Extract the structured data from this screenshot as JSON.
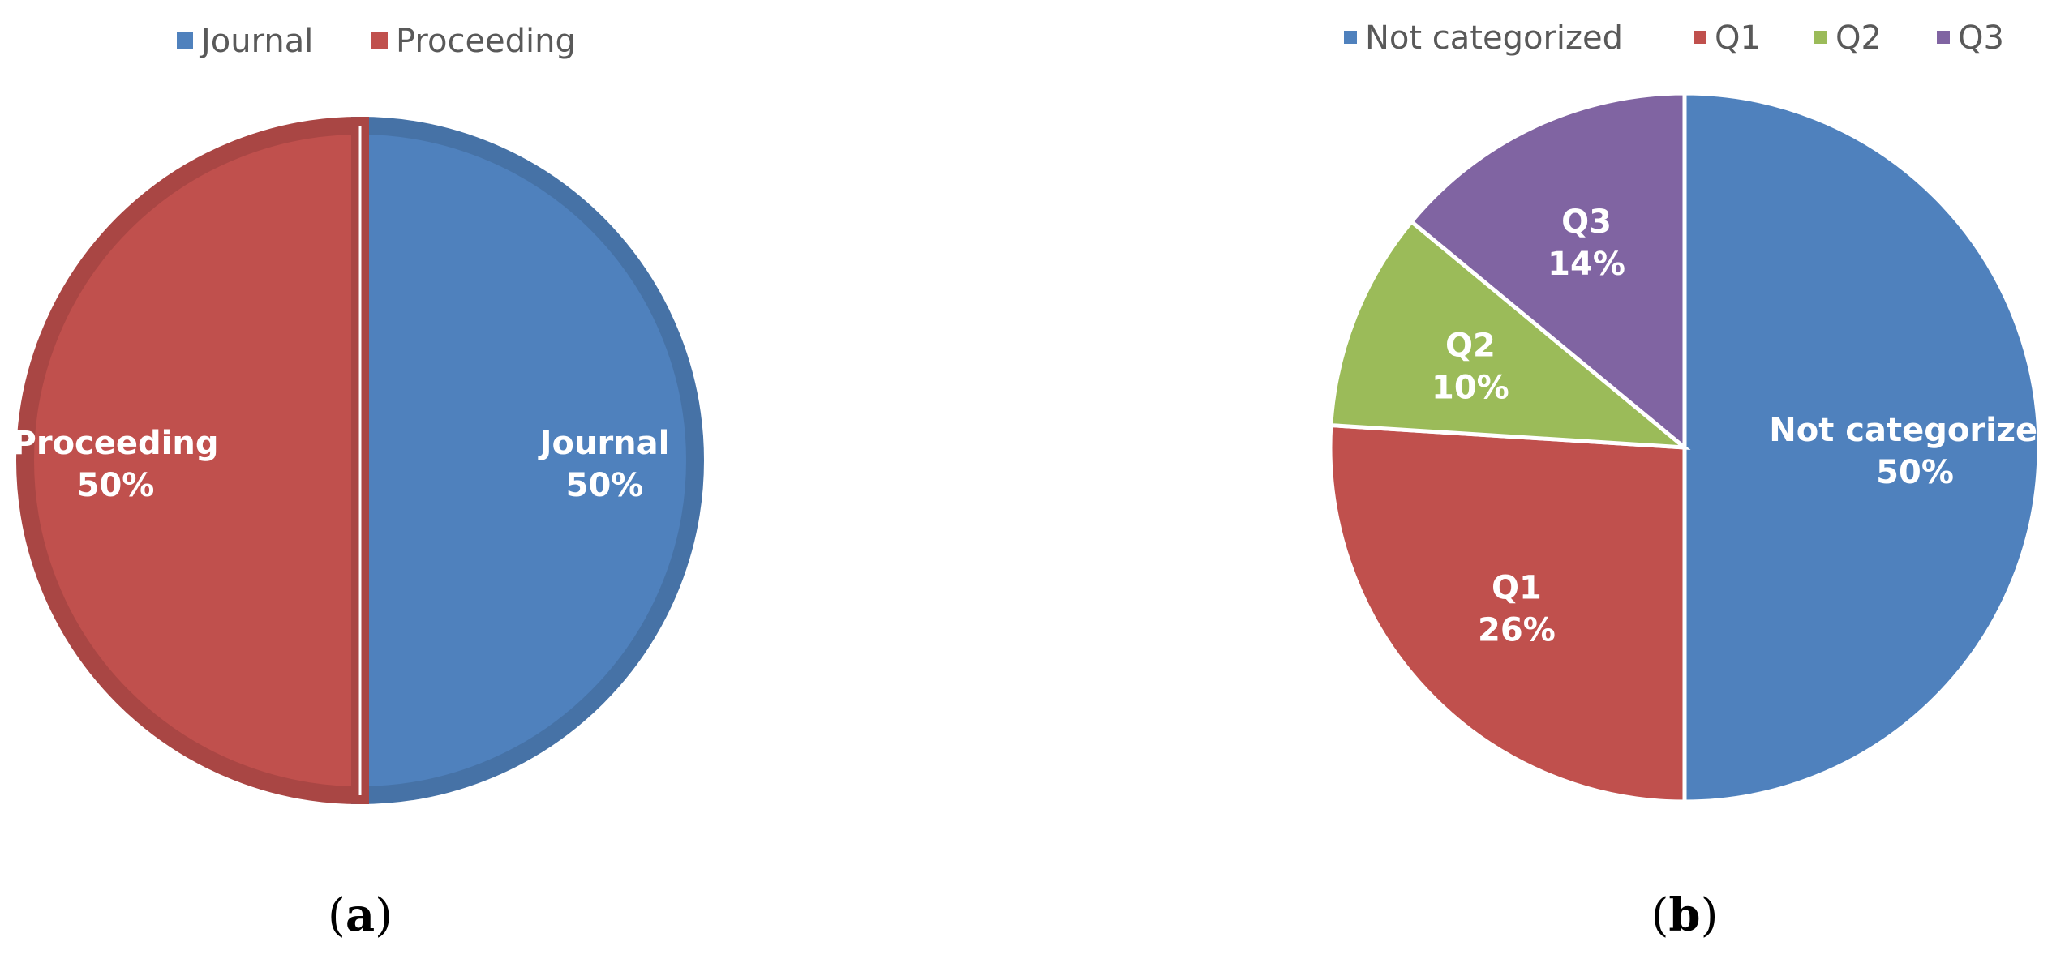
{
  "colors": {
    "blue": "#4F81BD",
    "red": "#C0504D",
    "green": "#9BBB59",
    "purple": "#8064A2"
  },
  "chart_data": [
    {
      "type": "pie",
      "panel_label": "a",
      "legend_position": "top",
      "slices": [
        {
          "name": "Journal",
          "value": 50,
          "label_value": "50%",
          "color": "#4F81BD"
        },
        {
          "name": "Proceeding",
          "value": 50,
          "label_value": "50%",
          "color": "#C0504D"
        }
      ]
    },
    {
      "type": "pie",
      "panel_label": "b",
      "legend_position": "top",
      "slices": [
        {
          "name": "Not categorized",
          "value": 50,
          "label_value": "50%",
          "color": "#4F81BD"
        },
        {
          "name": "Q1",
          "value": 26,
          "label_value": "26%",
          "color": "#C0504D"
        },
        {
          "name": "Q2",
          "value": 10,
          "label_value": "10%",
          "color": "#9BBB59"
        },
        {
          "name": "Q3",
          "value": 14,
          "label_value": "14%",
          "color": "#8064A2"
        }
      ]
    }
  ]
}
